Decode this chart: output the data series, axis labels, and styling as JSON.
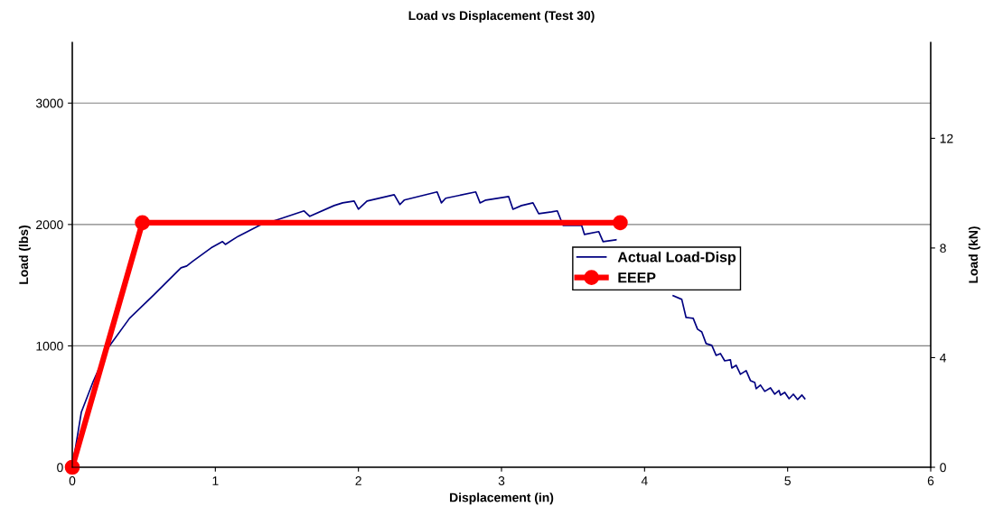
{
  "chart_data": {
    "type": "line",
    "title": "Load vs Displacement (Test 30)",
    "xlabel": "Displacement (in)",
    "ylabel": "Load (lbs)",
    "y2label": "Load (kN)",
    "xlim": [
      0,
      6
    ],
    "xticks": [
      0,
      1,
      2,
      3,
      4,
      5,
      6
    ],
    "ylim": [
      0,
      3500
    ],
    "yticks": [
      0,
      1000,
      2000,
      3000
    ],
    "y2lim": [
      0,
      15.5
    ],
    "y2ticks": [
      0,
      4,
      8,
      12
    ],
    "grid": "y",
    "legend": "right",
    "series": [
      {
        "name": "Actual Load-Disp",
        "color": "#000080",
        "marker": "none",
        "x": [
          0,
          0.063,
          0.146,
          0.253,
          0.4,
          0.57,
          0.76,
          0.8,
          0.84,
          0.97,
          1.05,
          1.07,
          1.16,
          1.31,
          1.45,
          1.62,
          1.66,
          1.83,
          1.89,
          1.97,
          2.0,
          2.06,
          2.25,
          2.29,
          2.32,
          2.55,
          2.58,
          2.61,
          2.82,
          2.85,
          2.89,
          3.05,
          3.08,
          3.14,
          3.22,
          3.26,
          3.35,
          3.39,
          3.43,
          3.56,
          3.58,
          3.68,
          3.71,
          3.8,
          4.0,
          4.2,
          4.26,
          4.29,
          4.34,
          4.37,
          4.4,
          4.43,
          4.47,
          4.5,
          4.53,
          4.56,
          4.6,
          4.61,
          4.64,
          4.67,
          4.71,
          4.74,
          4.77,
          4.78,
          4.81,
          4.84,
          4.88,
          4.91,
          4.94,
          4.95,
          4.98,
          5.01,
          5.04,
          5.07,
          5.1,
          5.12
        ],
        "values": [
          0,
          453,
          706,
          989,
          1227,
          1420,
          1643,
          1658,
          1695,
          1807,
          1859,
          1836,
          1903,
          1993,
          2045,
          2112,
          2067,
          2156,
          2178,
          2193,
          2126,
          2193,
          2245,
          2164,
          2201,
          2268,
          2178,
          2216,
          2268,
          2178,
          2201,
          2230,
          2126,
          2156,
          2178,
          2089,
          2104,
          2112,
          1993,
          1993,
          1918,
          1941,
          1859,
          1874,
          null,
          1413,
          1383,
          1234,
          1227,
          1138,
          1115,
          1019,
          1004,
          922,
          937,
          877,
          885,
          818,
          840,
          766,
          796,
          714,
          699,
          647,
          677,
          625,
          654,
          602,
          632,
          595,
          617,
          565,
          602,
          558,
          595,
          565
        ]
      },
      {
        "name": "EEEP",
        "color": "#ff0000",
        "marker": "circle",
        "x": [
          0,
          0.49,
          3.83
        ],
        "values": [
          0,
          2015,
          2015
        ]
      }
    ]
  }
}
